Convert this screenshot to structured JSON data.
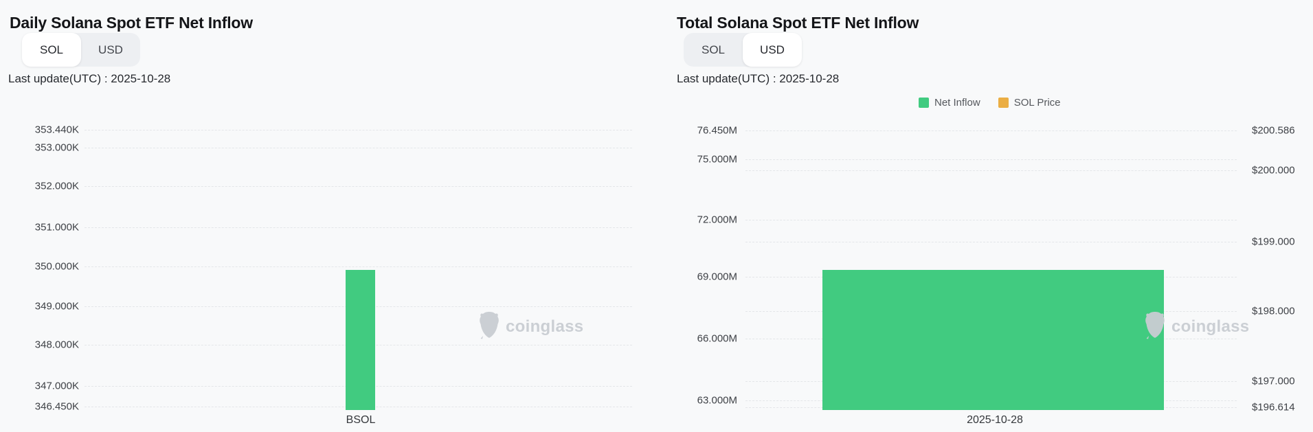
{
  "watermark": {
    "label": "coinglass"
  },
  "colors": {
    "net_inflow_green": "#41cb80",
    "sol_price_orange": "#ebae44",
    "background": "#f8f9fa",
    "grid": "#e4e6e9",
    "watermark_gray": "#c9cdd3"
  },
  "charts": {
    "daily": {
      "title": "Daily Solana Spot ETF Net Inflow",
      "toggle": {
        "sol": "SOL",
        "usd": "USD",
        "selected": "SOL"
      },
      "last_update": "Last update(UTC) : 2025-10-28",
      "y_ticks": [
        "353.440K",
        "353.000K",
        "352.000K",
        "351.000K",
        "350.000K",
        "349.000K",
        "348.000K",
        "347.000K",
        "346.450K"
      ],
      "x_labels": [
        "BSOL"
      ]
    },
    "total": {
      "title": "Total Solana Spot ETF Net Inflow",
      "toggle": {
        "sol": "SOL",
        "usd": "USD",
        "selected": "USD"
      },
      "last_update": "Last update(UTC) : 2025-10-28",
      "legend": [
        {
          "label": "Net Inflow",
          "color": "#41cb80"
        },
        {
          "label": "SOL Price",
          "color": "#ebae44"
        }
      ],
      "left_y_ticks": [
        "76.450M",
        "75.000M",
        "72.000M",
        "69.000M",
        "66.000M",
        "63.000M"
      ],
      "right_y_ticks": [
        "$200.586",
        "$200.000",
        "$199.000",
        "$198.000",
        "$197.000",
        "$196.614"
      ],
      "x_labels": [
        "2025-10-28"
      ]
    }
  },
  "chart_data": [
    {
      "type": "bar",
      "title": "Daily Solana Spot ETF Net Inflow",
      "unit": "SOL",
      "unit_toggle": [
        "SOL",
        "USD"
      ],
      "selected_unit": "SOL",
      "last_update_utc": "2025-10-28",
      "categories": [
        "BSOL"
      ],
      "values": [
        349900
      ],
      "values_note": "bar top read from gridlines, ≈349.9K SOL (between 349.000K and 350.000K, just under 350.000K)",
      "yticks": [
        "353.440K",
        "353.000K",
        "352.000K",
        "351.000K",
        "350.000K",
        "349.000K",
        "348.000K",
        "347.000K",
        "346.450K"
      ],
      "ylim": [
        346450,
        353440
      ],
      "bar_color": "#41cb80",
      "grid": true,
      "legend": null
    },
    {
      "type": "bar",
      "title": "Total Solana Spot ETF Net Inflow",
      "unit": "USD",
      "unit_toggle": [
        "SOL",
        "USD"
      ],
      "selected_unit": "USD",
      "last_update_utc": "2025-10-28",
      "categories": [
        "2025-10-28"
      ],
      "series": [
        {
          "name": "Net Inflow",
          "type": "bar",
          "axis": "left",
          "color": "#41cb80",
          "values": [
            69400000
          ],
          "values_note": "bar top ≈69.4M USD, read between 69.000M and 72.000M gridlines"
        },
        {
          "name": "SOL Price",
          "type": "line",
          "axis": "right",
          "color": "#ebae44",
          "values": [],
          "values_note": "no data point visible on chart; right axis range implies price between $196.614 and $200.586"
        }
      ],
      "left_yticks": [
        "76.450M",
        "75.000M",
        "72.000M",
        "69.000M",
        "66.000M",
        "63.000M"
      ],
      "left_ylim": [
        62600000,
        76450000
      ],
      "right_yticks": [
        "$200.586",
        "$200.000",
        "$199.000",
        "$198.000",
        "$197.000",
        "$196.614"
      ],
      "right_ylim": [
        196.614,
        200.586
      ],
      "legend_position": "top-center",
      "grid": true
    }
  ]
}
